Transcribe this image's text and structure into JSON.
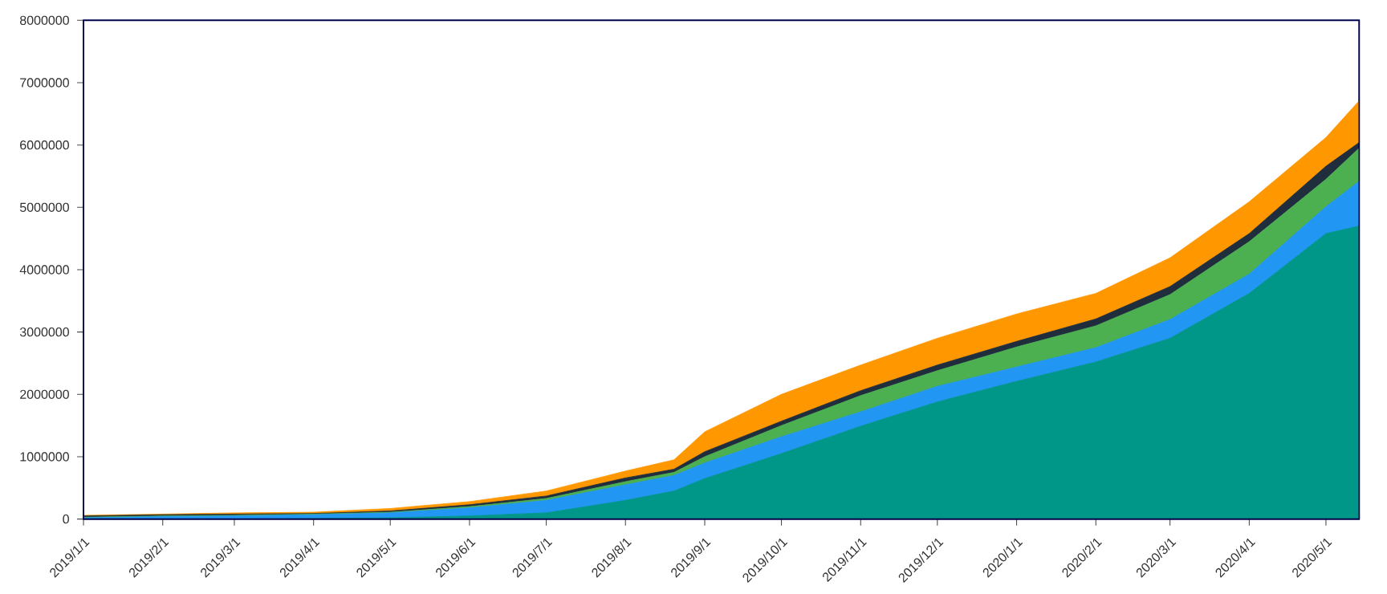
{
  "chart_data": {
    "type": "area",
    "stacked": true,
    "x": [
      "2019-01-01",
      "2019-02-01",
      "2019-03-01",
      "2019-04-01",
      "2019-05-01",
      "2019-06-01",
      "2019-07-01",
      "2019-08-01",
      "2019-08-20",
      "2019-09-01",
      "2019-10-01",
      "2019-11-01",
      "2019-12-01",
      "2020-01-01",
      "2020-02-01",
      "2020-03-01",
      "2020-04-01",
      "2020-05-01",
      "2020-05-14"
    ],
    "xlim": [
      "2019-01-01",
      "2020-05-14"
    ],
    "xticks": [
      {
        "value": "2019-01-01",
        "label": "2019/1/1"
      },
      {
        "value": "2019-02-01",
        "label": "2019/2/1"
      },
      {
        "value": "2019-03-01",
        "label": "2019/3/1"
      },
      {
        "value": "2019-04-01",
        "label": "2019/4/1"
      },
      {
        "value": "2019-05-01",
        "label": "2019/5/1"
      },
      {
        "value": "2019-06-01",
        "label": "2019/6/1"
      },
      {
        "value": "2019-07-01",
        "label": "2019/7/1"
      },
      {
        "value": "2019-08-01",
        "label": "2019/8/1"
      },
      {
        "value": "2019-09-01",
        "label": "2019/9/1"
      },
      {
        "value": "2019-10-01",
        "label": "2019/10/1"
      },
      {
        "value": "2019-11-01",
        "label": "2019/11/1"
      },
      {
        "value": "2019-12-01",
        "label": "2019/12/1"
      },
      {
        "value": "2020-01-01",
        "label": "2020/1/1"
      },
      {
        "value": "2020-02-01",
        "label": "2020/2/1"
      },
      {
        "value": "2020-03-01",
        "label": "2020/3/1"
      },
      {
        "value": "2020-04-01",
        "label": "2020/4/1"
      },
      {
        "value": "2020-05-01",
        "label": "2020/5/1"
      }
    ],
    "ylim": [
      0,
      8000000
    ],
    "yticks": [
      0,
      1000000,
      2000000,
      3000000,
      4000000,
      5000000,
      6000000,
      7000000,
      8000000
    ],
    "series": [
      {
        "color": "#009688",
        "values": [
          0,
          0,
          0,
          10000,
          20000,
          50000,
          100000,
          300000,
          450000,
          650000,
          1050000,
          1490000,
          1880000,
          2210000,
          2520000,
          2900000,
          3620000,
          4580000,
          4700000
        ]
      },
      {
        "color": "#2196f3",
        "values": [
          20000,
          40000,
          50000,
          60000,
          80000,
          130000,
          200000,
          250000,
          250000,
          250000,
          270000,
          230000,
          250000,
          230000,
          230000,
          300000,
          310000,
          430000,
          720000
        ]
      },
      {
        "color": "#4caf50",
        "values": [
          10000,
          10000,
          10000,
          10000,
          10000,
          20000,
          30000,
          50000,
          50000,
          100000,
          180000,
          260000,
          250000,
          320000,
          350000,
          400000,
          520000,
          440000,
          530000
        ]
      },
      {
        "color": "#1f2d3d",
        "values": [
          20000,
          20000,
          20000,
          10000,
          20000,
          30000,
          40000,
          60000,
          50000,
          80000,
          70000,
          80000,
          90000,
          90000,
          110000,
          130000,
          130000,
          210000,
          90000
        ]
      },
      {
        "color": "#ff9800",
        "values": [
          10000,
          10000,
          20000,
          20000,
          40000,
          50000,
          80000,
          110000,
          150000,
          320000,
          430000,
          410000,
          430000,
          440000,
          410000,
          460000,
          510000,
          460000,
          670000
        ]
      }
    ]
  }
}
